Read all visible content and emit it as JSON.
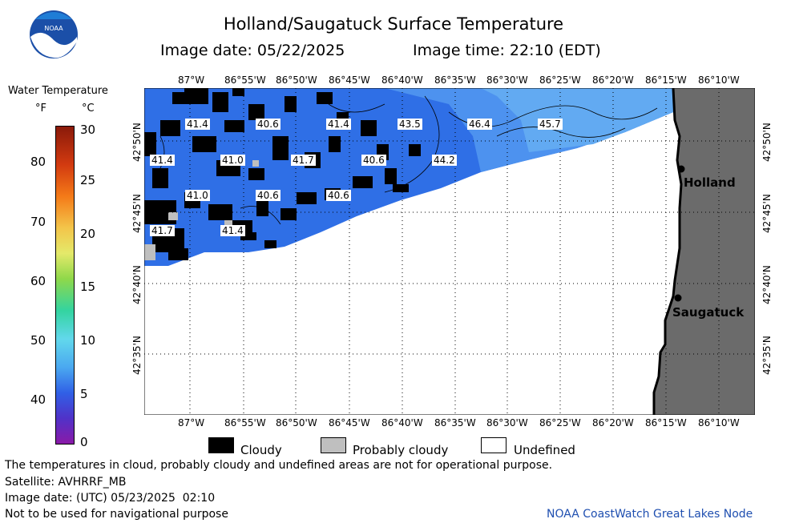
{
  "header": {
    "title": "Holland/Saugatuck Surface Temperature",
    "image_date_label": "Image date: 05/22/2025",
    "image_time_label": "Image time: 22:10 (EDT)"
  },
  "logo": {
    "text": "NOAA"
  },
  "legend": {
    "title": "Water Temperature",
    "unit_f": "°F",
    "unit_c": "°C",
    "f_ticks": [
      "80",
      "70",
      "60",
      "50",
      "40"
    ],
    "c_ticks": [
      "30",
      "25",
      "20",
      "15",
      "10",
      "5",
      "0"
    ]
  },
  "map": {
    "lon_labels": [
      "87°W",
      "86°55'W",
      "86°50'W",
      "86°45'W",
      "86°40'W",
      "86°35'W",
      "86°30'W",
      "86°25'W",
      "86°20'W",
      "86°15'W",
      "86°10'W"
    ],
    "lat_labels": [
      "42°50'N",
      "42°45'N",
      "42°40'N",
      "42°35'N"
    ],
    "temperature_labels": [
      "41.4",
      "40.6",
      "41.4",
      "43.5",
      "46.4",
      "45.7",
      "41.4",
      "41.0",
      "41.7",
      "40.6",
      "44.2",
      "41.0",
      "40.6",
      "40.6",
      "41.7",
      "41.4"
    ],
    "cities": [
      "Holland",
      "Saugatuck"
    ],
    "colors": {
      "water": "#2f6fe6",
      "water_warm": "#5aa7f0",
      "cloud": "#000000",
      "probably_cloudy": "#bfbfbf",
      "land": "#6b6b6b",
      "undefined": "#ffffff"
    }
  },
  "key": {
    "cloudy": "Cloudy",
    "probably_cloudy": "Probably cloudy",
    "undefined": "Undefined"
  },
  "footer": {
    "note1": "The temperatures in cloud, probably cloudy and undefined areas are not for operational purpose.",
    "satellite": "Satellite: AVHRRF_MB",
    "utc_date": "Image date: (UTC) 05/23/2025  02:10",
    "nav_note": "Not to be used for navigational purpose",
    "credit": "NOAA CoastWatch Great Lakes Node"
  }
}
